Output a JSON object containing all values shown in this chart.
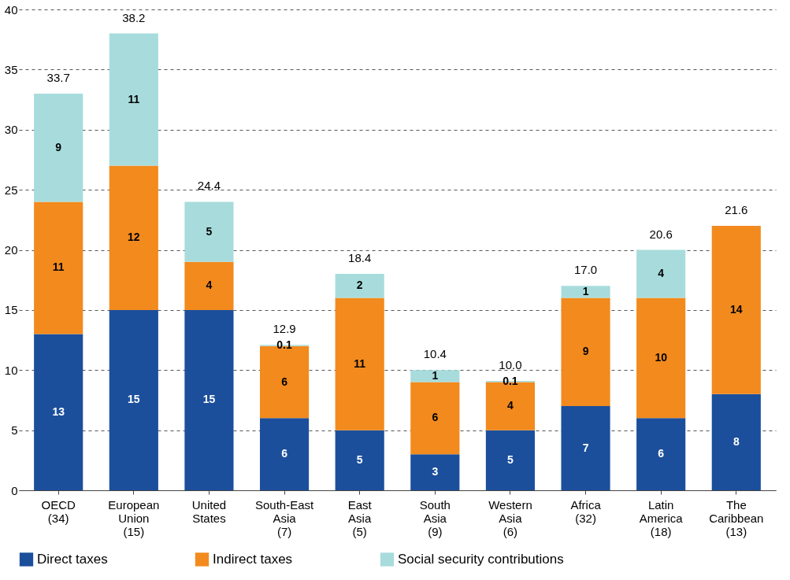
{
  "chart_data": {
    "type": "bar",
    "stacked": true,
    "categories": [
      "OECD\n(34)",
      "European\nUnion\n(15)",
      "United\nStates",
      "South-East\nAsia\n(7)",
      "East\nAsia\n(5)",
      "South\nAsia\n(9)",
      "Western\nAsia\n(6)",
      "Africa\n(32)",
      "Latin\nAmerica\n(18)",
      "The\nCaribbean\n(13)"
    ],
    "series": [
      {
        "name": "Direct taxes",
        "color": "#1b4f9c",
        "values": [
          13,
          15,
          15,
          6,
          5,
          3,
          5,
          7,
          6,
          8
        ]
      },
      {
        "name": "Indirect taxes",
        "color": "#f28a1e",
        "values": [
          11,
          12,
          4,
          6,
          11,
          6,
          4,
          9,
          10,
          14
        ]
      },
      {
        "name": "Social security contributions",
        "color": "#a8dcdc",
        "values": [
          9,
          11,
          5,
          0.1,
          2,
          1,
          0.1,
          1,
          4,
          null
        ]
      }
    ],
    "annotations": [
      {
        "text": "33.7",
        "x": "OECD\n(34)",
        "y": 33
      },
      {
        "text": "38.2",
        "x": "European\nUnion\n(15)",
        "y": 38
      },
      {
        "text": "24.4",
        "x": "United\nStates",
        "y": 24
      },
      {
        "text": "12.9",
        "x": "South-East\nAsia\n(7)",
        "y": 12.1
      },
      {
        "text": "18.4",
        "x": "East\nAsia\n(5)",
        "y": 18
      },
      {
        "text": "10.4",
        "x": "South\nAsia\n(9)",
        "y": 10
      },
      {
        "text": "10.0",
        "x": "Western\nAsia\n(6)",
        "y": 9.1
      },
      {
        "text": "17.0",
        "x": "Africa\n(32)",
        "y": 17
      },
      {
        "text": "20.6",
        "x": "Latin\nAmerica\n(18)",
        "y": 20
      },
      {
        "text": "21.6",
        "x": "The\nCaribbean\n(13)",
        "y": 22
      }
    ],
    "data_labels": true,
    "ylim": [
      0,
      40
    ],
    "yticks": [
      0,
      5,
      10,
      15,
      20,
      25,
      30,
      35,
      40
    ],
    "grid": "y",
    "legend": "bottom"
  }
}
